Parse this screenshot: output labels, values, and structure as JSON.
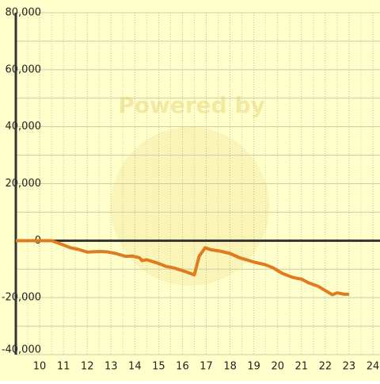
{
  "chart_data": {
    "type": "line",
    "watermark": "Powered by",
    "x": [
      9,
      10.5,
      11,
      11.3,
      11.6,
      12,
      12.5,
      12.8,
      13.2,
      13.6,
      13.9,
      14.2,
      14.3,
      14.5,
      15,
      15.3,
      15.6,
      16,
      16.5,
      16.7,
      16.95,
      17.2,
      17.6,
      18,
      18.4,
      18.8,
      19,
      19.5,
      19.8,
      20.2,
      20.6,
      20.8,
      21,
      21.3,
      21.7,
      22,
      22.3,
      22.5,
      22.8,
      23
    ],
    "series": [
      {
        "color": "#e07b20",
        "values": [
          0,
          0,
          -1500,
          -2500,
          -3000,
          -4000,
          -3800,
          -3900,
          -4500,
          -5500,
          -5400,
          -6000,
          -7000,
          -6700,
          -8000,
          -9000,
          -9500,
          -10500,
          -12000,
          -5500,
          -2500,
          -3200,
          -3700,
          -4500,
          -6000,
          -7000,
          -7500,
          -8500,
          -9500,
          -11500,
          -12800,
          -13200,
          -13500,
          -14800,
          -16000,
          -17500,
          -19000,
          -18300,
          -18800,
          -18800
        ]
      }
    ],
    "xlim": [
      9,
      24.3
    ],
    "ylim": [
      -40000,
      80000
    ],
    "xticks": [
      10,
      11,
      12,
      13,
      14,
      15,
      16,
      17,
      18,
      19,
      20,
      21,
      22,
      23,
      24
    ],
    "yticks": [
      {
        "value": -40000,
        "label": "-40,000"
      },
      {
        "value": -20000,
        "label": "-20,000"
      },
      0,
      {
        "value": 20000,
        "label": "20,000"
      },
      {
        "value": 40000,
        "label": "40,000"
      },
      {
        "value": 60000,
        "label": "60,000"
      },
      {
        "value": 80000,
        "label": "80,000"
      }
    ],
    "y_minor_grid": [
      -30000,
      -10000,
      10000,
      30000,
      50000,
      70000
    ],
    "x_minor_grid": [
      9.5,
      10.5,
      11.5,
      12.5,
      13.5,
      14.5,
      15.5,
      16.5,
      17.5,
      18.5,
      19.5,
      20.5,
      21.5,
      22.5,
      23.5
    ],
    "grid": true,
    "background": "#ffffcc"
  }
}
